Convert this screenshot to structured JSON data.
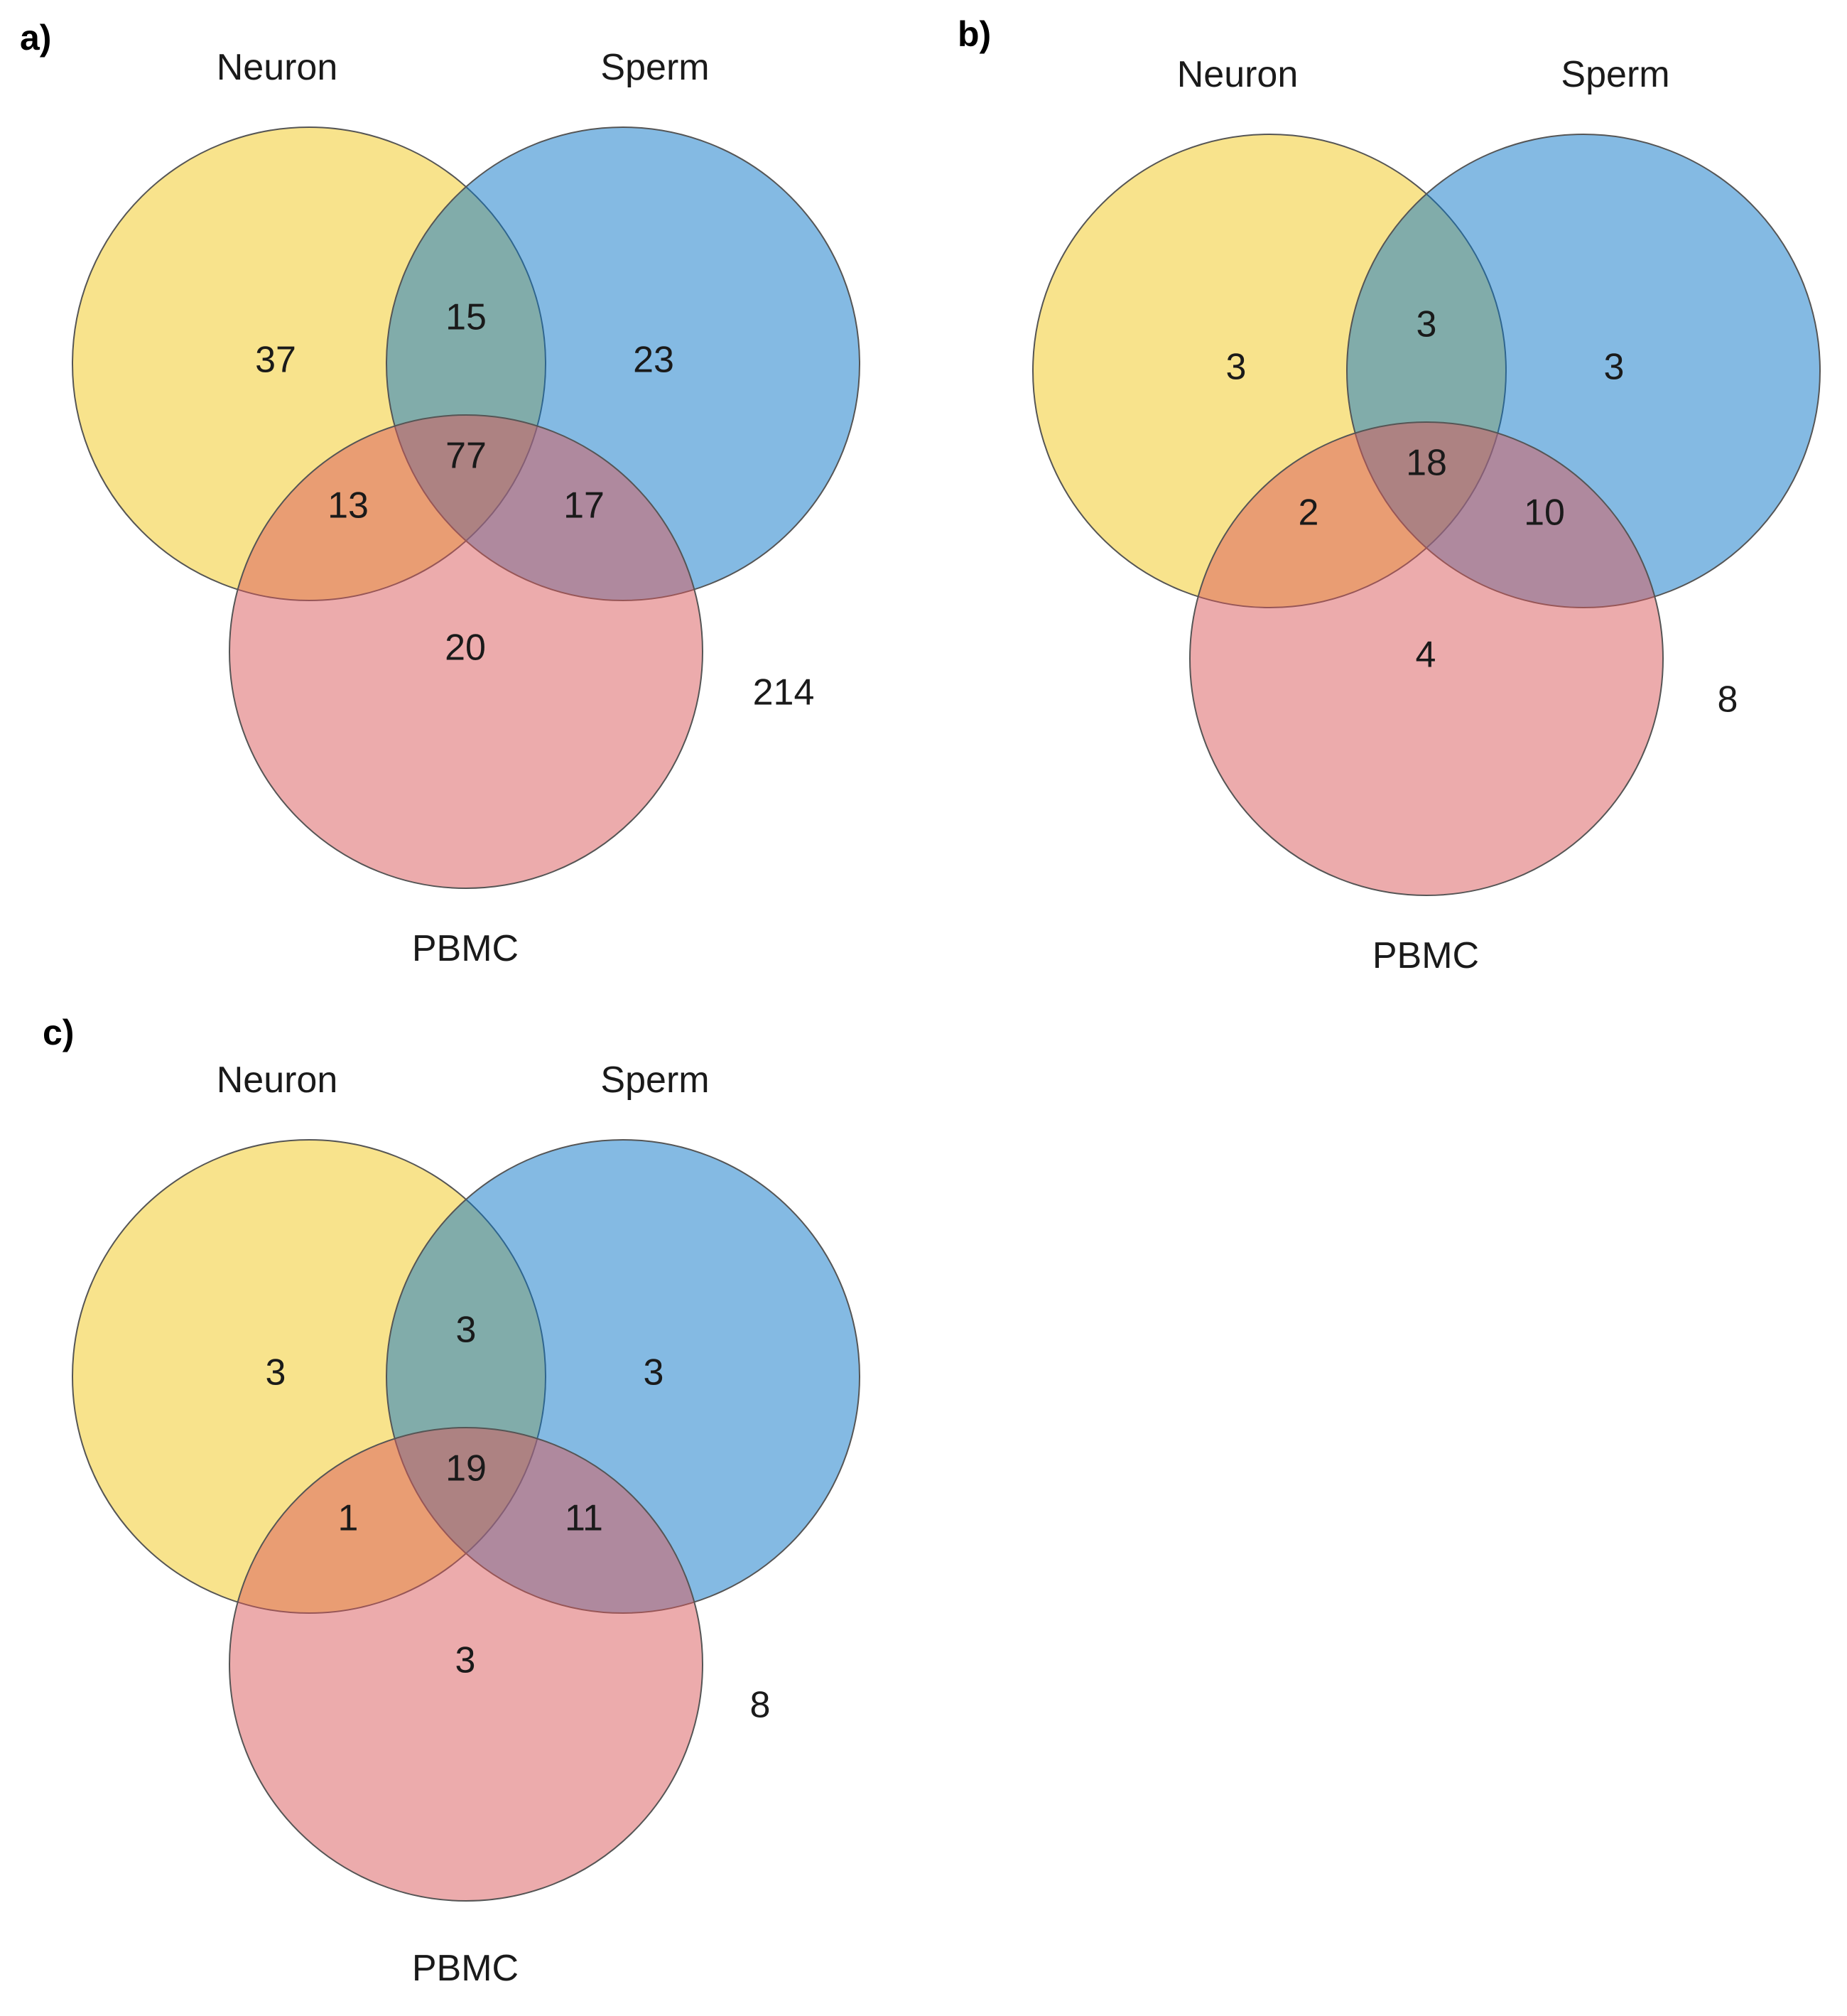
{
  "colors": {
    "neuron": "#f2c81a",
    "sperm": "#0a76c8",
    "pbmc": "#d9575a"
  },
  "chart_data": [
    {
      "type": "venn",
      "panel": "a)",
      "sets": [
        "Neuron",
        "Sperm",
        "PBMC"
      ],
      "regions": {
        "neuron_only": "37",
        "sperm_only": "23",
        "pbmc_only": "20",
        "neuron_sperm": "15",
        "neuron_pbmc": "13",
        "sperm_pbmc": "17",
        "all": "77",
        "outside": "214"
      }
    },
    {
      "type": "venn",
      "panel": "b)",
      "sets": [
        "Neuron",
        "Sperm",
        "PBMC"
      ],
      "regions": {
        "neuron_only": "3",
        "sperm_only": "3",
        "pbmc_only": "4",
        "neuron_sperm": "3",
        "neuron_pbmc": "2",
        "sperm_pbmc": "10",
        "all": "18",
        "outside": "8"
      }
    },
    {
      "type": "venn",
      "panel": "c)",
      "sets": [
        "Neuron",
        "Sperm",
        "PBMC"
      ],
      "regions": {
        "neuron_only": "3",
        "sperm_only": "3",
        "pbmc_only": "3",
        "neuron_sperm": "3",
        "neuron_pbmc": "1",
        "sperm_pbmc": "11",
        "all": "19",
        "outside": "8"
      }
    }
  ]
}
